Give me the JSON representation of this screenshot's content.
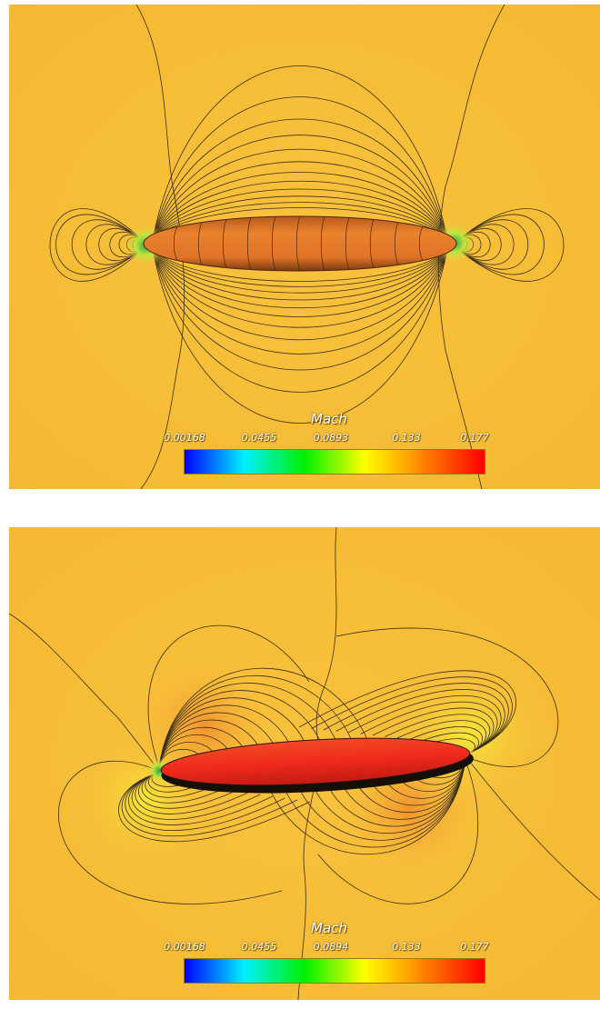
{
  "colors": {
    "background": "#f9c23c",
    "background_edge": "#f4b933",
    "body_top": "#e9822c",
    "body_bottom": "#ef2a1c",
    "contour_line": "#3a2f1a"
  },
  "colorbar_colors": [
    "#0000ff",
    "#00f0ff",
    "#00f000",
    "#ffff00",
    "#ff8000",
    "#ff0000"
  ],
  "panels": [
    {
      "colorbar": {
        "title": "Mach",
        "ticks": [
          "0.00168",
          "0.0455",
          "0.0893",
          "0.133",
          "0.177"
        ]
      }
    },
    {
      "colorbar": {
        "title": "Mach",
        "ticks": [
          "0.00168",
          "0.0455",
          "0.0894",
          "0.133",
          "0.177"
        ]
      }
    }
  ]
}
